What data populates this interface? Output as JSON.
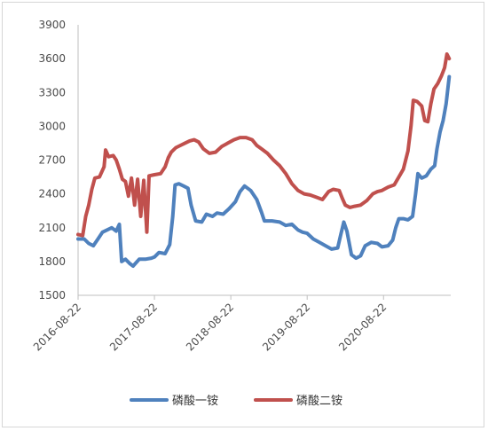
{
  "chart_data": {
    "type": "line",
    "title": "",
    "xlabel": "",
    "ylabel": "",
    "ylim": [
      1500,
      3900
    ],
    "yticks": [
      1500,
      1800,
      2100,
      2400,
      2700,
      3000,
      3300,
      3600,
      3900
    ],
    "x_tick_labels": [
      "2016-08-22",
      "2017-08-22",
      "2018-08-22",
      "2019-08-22",
      "2020-08-22"
    ],
    "x_tick_values": [
      2016.64,
      2017.64,
      2018.64,
      2019.64,
      2020.64
    ],
    "xlim": [
      2016.64,
      2021.52
    ],
    "grid": false,
    "legend_position": "bottom",
    "series": [
      {
        "name": "磷酸一铵",
        "color": "#4F81BD",
        "points": [
          [
            2016.64,
            2000
          ],
          [
            2016.72,
            2000
          ],
          [
            2016.78,
            1960
          ],
          [
            2016.84,
            1940
          ],
          [
            2016.9,
            2000
          ],
          [
            2016.96,
            2060
          ],
          [
            2017.02,
            2080
          ],
          [
            2017.08,
            2100
          ],
          [
            2017.14,
            2070
          ],
          [
            2017.18,
            2130
          ],
          [
            2017.21,
            1800
          ],
          [
            2017.26,
            1820
          ],
          [
            2017.32,
            1780
          ],
          [
            2017.36,
            1760
          ],
          [
            2017.44,
            1820
          ],
          [
            2017.52,
            1820
          ],
          [
            2017.6,
            1830
          ],
          [
            2017.64,
            1840
          ],
          [
            2017.7,
            1880
          ],
          [
            2017.78,
            1870
          ],
          [
            2017.84,
            1950
          ],
          [
            2017.88,
            2200
          ],
          [
            2017.91,
            2480
          ],
          [
            2017.96,
            2490
          ],
          [
            2018.02,
            2470
          ],
          [
            2018.08,
            2450
          ],
          [
            2018.12,
            2300
          ],
          [
            2018.18,
            2160
          ],
          [
            2018.26,
            2150
          ],
          [
            2018.32,
            2220
          ],
          [
            2018.4,
            2200
          ],
          [
            2018.46,
            2230
          ],
          [
            2018.54,
            2220
          ],
          [
            2018.62,
            2270
          ],
          [
            2018.7,
            2330
          ],
          [
            2018.76,
            2420
          ],
          [
            2018.82,
            2470
          ],
          [
            2018.9,
            2430
          ],
          [
            2018.98,
            2350
          ],
          [
            2019.04,
            2240
          ],
          [
            2019.08,
            2160
          ],
          [
            2019.18,
            2160
          ],
          [
            2019.28,
            2150
          ],
          [
            2019.36,
            2120
          ],
          [
            2019.44,
            2130
          ],
          [
            2019.52,
            2080
          ],
          [
            2019.58,
            2060
          ],
          [
            2019.64,
            2050
          ],
          [
            2019.72,
            2000
          ],
          [
            2019.8,
            1970
          ],
          [
            2019.88,
            1940
          ],
          [
            2019.96,
            1910
          ],
          [
            2020.04,
            1920
          ],
          [
            2020.08,
            2040
          ],
          [
            2020.12,
            2150
          ],
          [
            2020.16,
            2070
          ],
          [
            2020.22,
            1860
          ],
          [
            2020.28,
            1830
          ],
          [
            2020.34,
            1850
          ],
          [
            2020.4,
            1940
          ],
          [
            2020.48,
            1970
          ],
          [
            2020.56,
            1960
          ],
          [
            2020.62,
            1930
          ],
          [
            2020.7,
            1940
          ],
          [
            2020.76,
            1990
          ],
          [
            2020.8,
            2100
          ],
          [
            2020.84,
            2180
          ],
          [
            2020.9,
            2180
          ],
          [
            2020.96,
            2170
          ],
          [
            2021.02,
            2200
          ],
          [
            2021.06,
            2400
          ],
          [
            2021.09,
            2580
          ],
          [
            2021.14,
            2540
          ],
          [
            2021.2,
            2560
          ],
          [
            2021.26,
            2620
          ],
          [
            2021.31,
            2650
          ],
          [
            2021.34,
            2800
          ],
          [
            2021.38,
            2950
          ],
          [
            2021.42,
            3050
          ],
          [
            2021.46,
            3200
          ],
          [
            2021.5,
            3440
          ]
        ]
      },
      {
        "name": "磷酸二铵",
        "color": "#C0504D",
        "points": [
          [
            2016.64,
            2040
          ],
          [
            2016.7,
            2030
          ],
          [
            2016.74,
            2200
          ],
          [
            2016.78,
            2300
          ],
          [
            2016.82,
            2440
          ],
          [
            2016.86,
            2540
          ],
          [
            2016.92,
            2550
          ],
          [
            2016.98,
            2640
          ],
          [
            2017.0,
            2790
          ],
          [
            2017.04,
            2730
          ],
          [
            2017.1,
            2740
          ],
          [
            2017.14,
            2700
          ],
          [
            2017.18,
            2620
          ],
          [
            2017.22,
            2530
          ],
          [
            2017.26,
            2510
          ],
          [
            2017.3,
            2380
          ],
          [
            2017.34,
            2540
          ],
          [
            2017.38,
            2300
          ],
          [
            2017.42,
            2530
          ],
          [
            2017.46,
            2200
          ],
          [
            2017.5,
            2520
          ],
          [
            2017.54,
            2060
          ],
          [
            2017.57,
            2560
          ],
          [
            2017.64,
            2570
          ],
          [
            2017.72,
            2580
          ],
          [
            2017.78,
            2640
          ],
          [
            2017.82,
            2720
          ],
          [
            2017.86,
            2770
          ],
          [
            2017.92,
            2810
          ],
          [
            2017.98,
            2830
          ],
          [
            2018.04,
            2850
          ],
          [
            2018.1,
            2870
          ],
          [
            2018.16,
            2880
          ],
          [
            2018.22,
            2860
          ],
          [
            2018.28,
            2800
          ],
          [
            2018.36,
            2760
          ],
          [
            2018.44,
            2770
          ],
          [
            2018.52,
            2820
          ],
          [
            2018.6,
            2850
          ],
          [
            2018.68,
            2880
          ],
          [
            2018.76,
            2900
          ],
          [
            2018.84,
            2900
          ],
          [
            2018.92,
            2880
          ],
          [
            2018.98,
            2830
          ],
          [
            2019.04,
            2800
          ],
          [
            2019.12,
            2760
          ],
          [
            2019.2,
            2700
          ],
          [
            2019.28,
            2650
          ],
          [
            2019.36,
            2580
          ],
          [
            2019.44,
            2490
          ],
          [
            2019.52,
            2430
          ],
          [
            2019.6,
            2400
          ],
          [
            2019.68,
            2390
          ],
          [
            2019.76,
            2370
          ],
          [
            2019.84,
            2350
          ],
          [
            2019.92,
            2420
          ],
          [
            2019.98,
            2440
          ],
          [
            2020.06,
            2430
          ],
          [
            2020.1,
            2360
          ],
          [
            2020.14,
            2300
          ],
          [
            2020.2,
            2280
          ],
          [
            2020.26,
            2290
          ],
          [
            2020.34,
            2300
          ],
          [
            2020.42,
            2340
          ],
          [
            2020.5,
            2400
          ],
          [
            2020.56,
            2420
          ],
          [
            2020.62,
            2430
          ],
          [
            2020.7,
            2460
          ],
          [
            2020.78,
            2480
          ],
          [
            2020.84,
            2550
          ],
          [
            2020.9,
            2620
          ],
          [
            2020.96,
            2780
          ],
          [
            2021.0,
            3000
          ],
          [
            2021.03,
            3230
          ],
          [
            2021.08,
            3220
          ],
          [
            2021.14,
            3180
          ],
          [
            2021.18,
            3050
          ],
          [
            2021.22,
            3040
          ],
          [
            2021.26,
            3200
          ],
          [
            2021.3,
            3330
          ],
          [
            2021.35,
            3380
          ],
          [
            2021.4,
            3450
          ],
          [
            2021.44,
            3520
          ],
          [
            2021.47,
            3640
          ],
          [
            2021.5,
            3600
          ]
        ]
      }
    ]
  }
}
